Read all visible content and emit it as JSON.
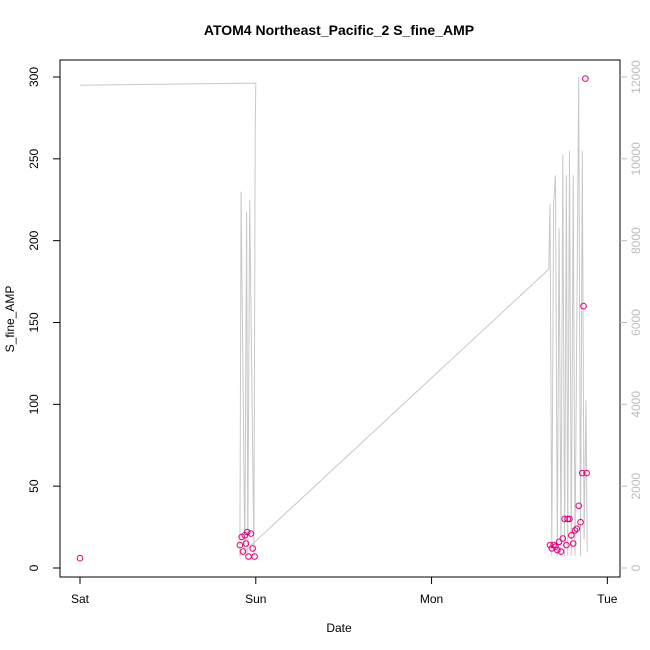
{
  "chart_data": {
    "type": "scatter",
    "title": "ATOM4 Northeast_Pacific_2 S_fine_AMP",
    "xlabel": "Date",
    "ylabel": "S_fine_AMP",
    "x_axis": {
      "kind": "date",
      "range": [
        "2021-01-02 00:00",
        "2021-01-05 00:30"
      ],
      "ticks": [
        {
          "x": "2021-01-02 00:00",
          "label": "Sat"
        },
        {
          "x": "2021-01-03 00:00",
          "label": "Sun"
        },
        {
          "x": "2021-01-04 00:00",
          "label": "Mon"
        },
        {
          "x": "2021-01-05 00:00",
          "label": "Tue"
        }
      ]
    },
    "y_axis_left": {
      "range": [
        0,
        300
      ],
      "ticks": [
        0,
        50,
        100,
        150,
        200,
        250,
        300
      ]
    },
    "y_axis_right": {
      "range": [
        0,
        12000
      ],
      "ticks": [
        0,
        2000,
        4000,
        6000,
        8000,
        10000,
        12000
      ],
      "color": "#bdbdbd"
    },
    "grid": false,
    "series": [
      {
        "type": "scatter",
        "axis": "left",
        "color": "#e6007e",
        "marker": "open-circle",
        "points": [
          {
            "x": "2021-01-02 00:00",
            "y": 6
          },
          {
            "x": "2021-01-02 21:50",
            "y": 14
          },
          {
            "x": "2021-01-02 22:05",
            "y": 19
          },
          {
            "x": "2021-01-02 22:15",
            "y": 10
          },
          {
            "x": "2021-01-02 22:30",
            "y": 20
          },
          {
            "x": "2021-01-02 22:40",
            "y": 15
          },
          {
            "x": "2021-01-02 22:50",
            "y": 22
          },
          {
            "x": "2021-01-02 23:00",
            "y": 7
          },
          {
            "x": "2021-01-02 23:20",
            "y": 21
          },
          {
            "x": "2021-01-02 23:35",
            "y": 12
          },
          {
            "x": "2021-01-02 23:50",
            "y": 7
          },
          {
            "x": "2021-01-04 16:10",
            "y": 14
          },
          {
            "x": "2021-01-04 16:25",
            "y": 12
          },
          {
            "x": "2021-01-04 16:40",
            "y": 14
          },
          {
            "x": "2021-01-04 16:55",
            "y": 13
          },
          {
            "x": "2021-01-04 17:10",
            "y": 11
          },
          {
            "x": "2021-01-04 17:25",
            "y": 16
          },
          {
            "x": "2021-01-04 17:40",
            "y": 10
          },
          {
            "x": "2021-01-04 17:55",
            "y": 18
          },
          {
            "x": "2021-01-04 18:10",
            "y": 30
          },
          {
            "x": "2021-01-04 18:25",
            "y": 14
          },
          {
            "x": "2021-01-04 18:35",
            "y": 30
          },
          {
            "x": "2021-01-04 18:50",
            "y": 30
          },
          {
            "x": "2021-01-04 19:05",
            "y": 20
          },
          {
            "x": "2021-01-04 19:20",
            "y": 15
          },
          {
            "x": "2021-01-04 19:35",
            "y": 23
          },
          {
            "x": "2021-01-04 19:50",
            "y": 24
          },
          {
            "x": "2021-01-04 20:05",
            "y": 38
          },
          {
            "x": "2021-01-04 20:20",
            "y": 28
          },
          {
            "x": "2021-01-04 20:35",
            "y": 58
          },
          {
            "x": "2021-01-04 20:45",
            "y": 160
          },
          {
            "x": "2021-01-04 21:00",
            "y": 299
          },
          {
            "x": "2021-01-04 21:10",
            "y": 58
          }
        ]
      },
      {
        "type": "line",
        "axis": "right",
        "color": "#c8c8c8",
        "points": [
          {
            "x": "2021-01-02 00:00",
            "y": 11800
          },
          {
            "x": "2021-01-03 00:00",
            "y": 11850
          },
          {
            "x": "2021-01-02 23:55",
            "y": 10700
          },
          {
            "x": "2021-01-02 23:45",
            "y": 300
          },
          {
            "x": "2021-01-02 23:10",
            "y": 9000
          },
          {
            "x": "2021-01-02 22:55",
            "y": 300
          },
          {
            "x": "2021-01-02 22:45",
            "y": 8700
          },
          {
            "x": "2021-01-02 22:30",
            "y": 300
          },
          {
            "x": "2021-01-02 22:00",
            "y": 9200
          },
          {
            "x": "2021-01-02 21:50",
            "y": 300
          },
          {
            "x": "2021-01-04 16:00",
            "y": 7300
          },
          {
            "x": "2021-01-04 16:10",
            "y": 8900
          },
          {
            "x": "2021-01-04 16:25",
            "y": 300
          },
          {
            "x": "2021-01-04 16:40",
            "y": 8900
          },
          {
            "x": "2021-01-04 16:55",
            "y": 9600
          },
          {
            "x": "2021-01-04 17:10",
            "y": 300
          },
          {
            "x": "2021-01-04 17:25",
            "y": 8300
          },
          {
            "x": "2021-01-04 17:40",
            "y": 300
          },
          {
            "x": "2021-01-04 17:55",
            "y": 10100
          },
          {
            "x": "2021-01-04 18:10",
            "y": 300
          },
          {
            "x": "2021-01-04 18:25",
            "y": 9600
          },
          {
            "x": "2021-01-04 18:35",
            "y": 300
          },
          {
            "x": "2021-01-04 18:50",
            "y": 10200
          },
          {
            "x": "2021-01-04 19:05",
            "y": 300
          },
          {
            "x": "2021-01-04 19:20",
            "y": 9600
          },
          {
            "x": "2021-01-04 19:35",
            "y": 300
          },
          {
            "x": "2021-01-04 20:05",
            "y": 12000
          },
          {
            "x": "2021-01-04 20:20",
            "y": 300
          },
          {
            "x": "2021-01-04 20:35",
            "y": 10200
          },
          {
            "x": "2021-01-04 20:50",
            "y": 700
          },
          {
            "x": "2021-01-04 21:05",
            "y": 4100
          },
          {
            "x": "2021-01-04 21:15",
            "y": 400
          }
        ]
      }
    ]
  }
}
